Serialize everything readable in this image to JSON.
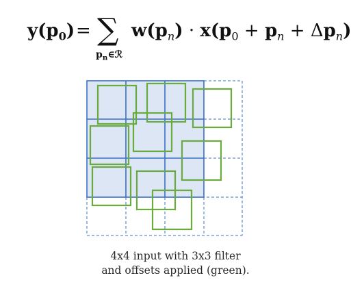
{
  "formula": {
    "lhs": "y(p",
    "lhs_sub": "0",
    "lhs_close": ")",
    "equals": "=",
    "sum_symbol": "∑",
    "sum_sub_p": "p",
    "sum_sub_n": "n",
    "sum_sub_set": "∈ℛ",
    "rhs_w": "w(p",
    "rhs_n1": "n",
    "rhs_close1": ")",
    "rhs_dot": " · ",
    "rhs_x": "x(p",
    "rhs_0": "0",
    "rhs_plus1": " + ",
    "rhs_p2": "p",
    "rhs_n2": "n",
    "rhs_plus2": " + Δ",
    "rhs_p3": "p",
    "rhs_n3": "n",
    "rhs_close2": ")"
  },
  "diagram": {
    "input_grid": "4x4",
    "filter_size": "3x3",
    "colors": {
      "grid_blue": "#3a6fc6",
      "fill_blue": "#dce6f5",
      "offset_green": "#6aab3e"
    }
  },
  "caption": {
    "line1": "4x4 input with 3x3 filter",
    "line2": "and offsets applied (green)."
  }
}
